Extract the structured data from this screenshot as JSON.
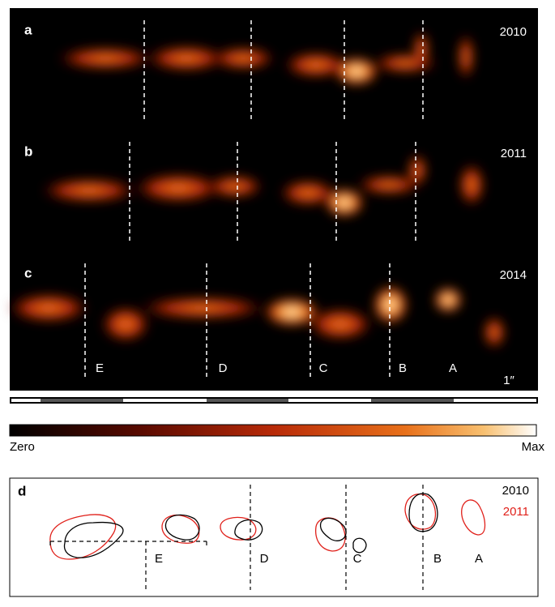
{
  "panels": [
    {
      "label": "a",
      "year": "2010"
    },
    {
      "label": "b",
      "year": "2011"
    },
    {
      "label": "c",
      "year": "2014"
    }
  ],
  "components": [
    "E",
    "D",
    "C",
    "B",
    "A"
  ],
  "scale_label": "1″",
  "colorbar": {
    "min_label": "Zero",
    "max_label": "Max"
  },
  "panel_d": {
    "label": "d",
    "legend": [
      {
        "name": "2010",
        "color": "#000000"
      },
      {
        "name": "2011",
        "color": "#e0201a"
      }
    ],
    "components": [
      "E",
      "D",
      "C",
      "B",
      "A"
    ]
  }
}
